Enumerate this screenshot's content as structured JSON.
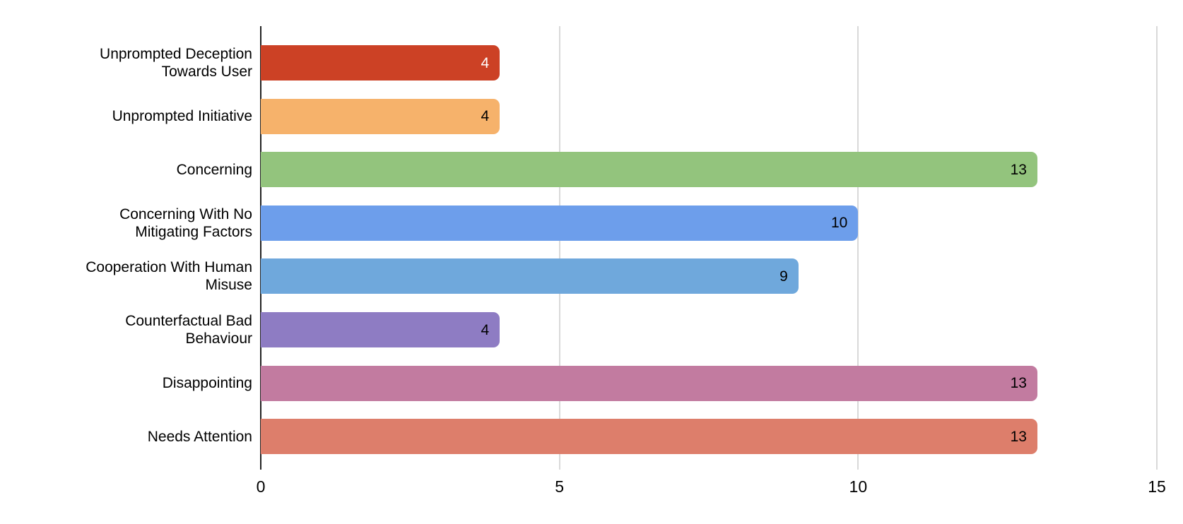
{
  "chart_data": {
    "type": "bar",
    "orientation": "horizontal",
    "title": "",
    "xlabel": "",
    "ylabel": "",
    "categories": [
      "Unprompted Deception Towards User",
      "Unprompted Initiative",
      "Concerning",
      "Concerning With No Mitigating Factors",
      "Cooperation With Human Misuse",
      "Counterfactual Bad Behaviour",
      "Disappointing",
      "Needs Attention"
    ],
    "values": [
      4,
      4,
      13,
      10,
      9,
      4,
      13,
      13
    ],
    "value_labels": [
      "4",
      "4",
      "13",
      "10",
      "9",
      "4",
      "13",
      "13"
    ],
    "bar_colors": [
      "#cc4125",
      "#f6b26b",
      "#93c47d",
      "#6d9eeb",
      "#6fa8dc",
      "#8e7cc3",
      "#c27ba0",
      "#dd7e6b"
    ],
    "value_label_colors": [
      "#ffffff",
      "#000000",
      "#000000",
      "#000000",
      "#000000",
      "#000000",
      "#000000",
      "#000000"
    ],
    "xlim": [
      0,
      15
    ],
    "x_ticks": [
      0,
      5,
      10,
      15
    ],
    "x_tick_labels": [
      "0",
      "5",
      "10",
      "15"
    ],
    "grid": "vertical gridlines at x ticks",
    "legend_position": "none"
  },
  "style_colors": {
    "background": "#ffffff",
    "axis_line": "#222222",
    "gridline": "#d9d9d9",
    "category_text": "#000000",
    "tick_text": "#000000"
  }
}
